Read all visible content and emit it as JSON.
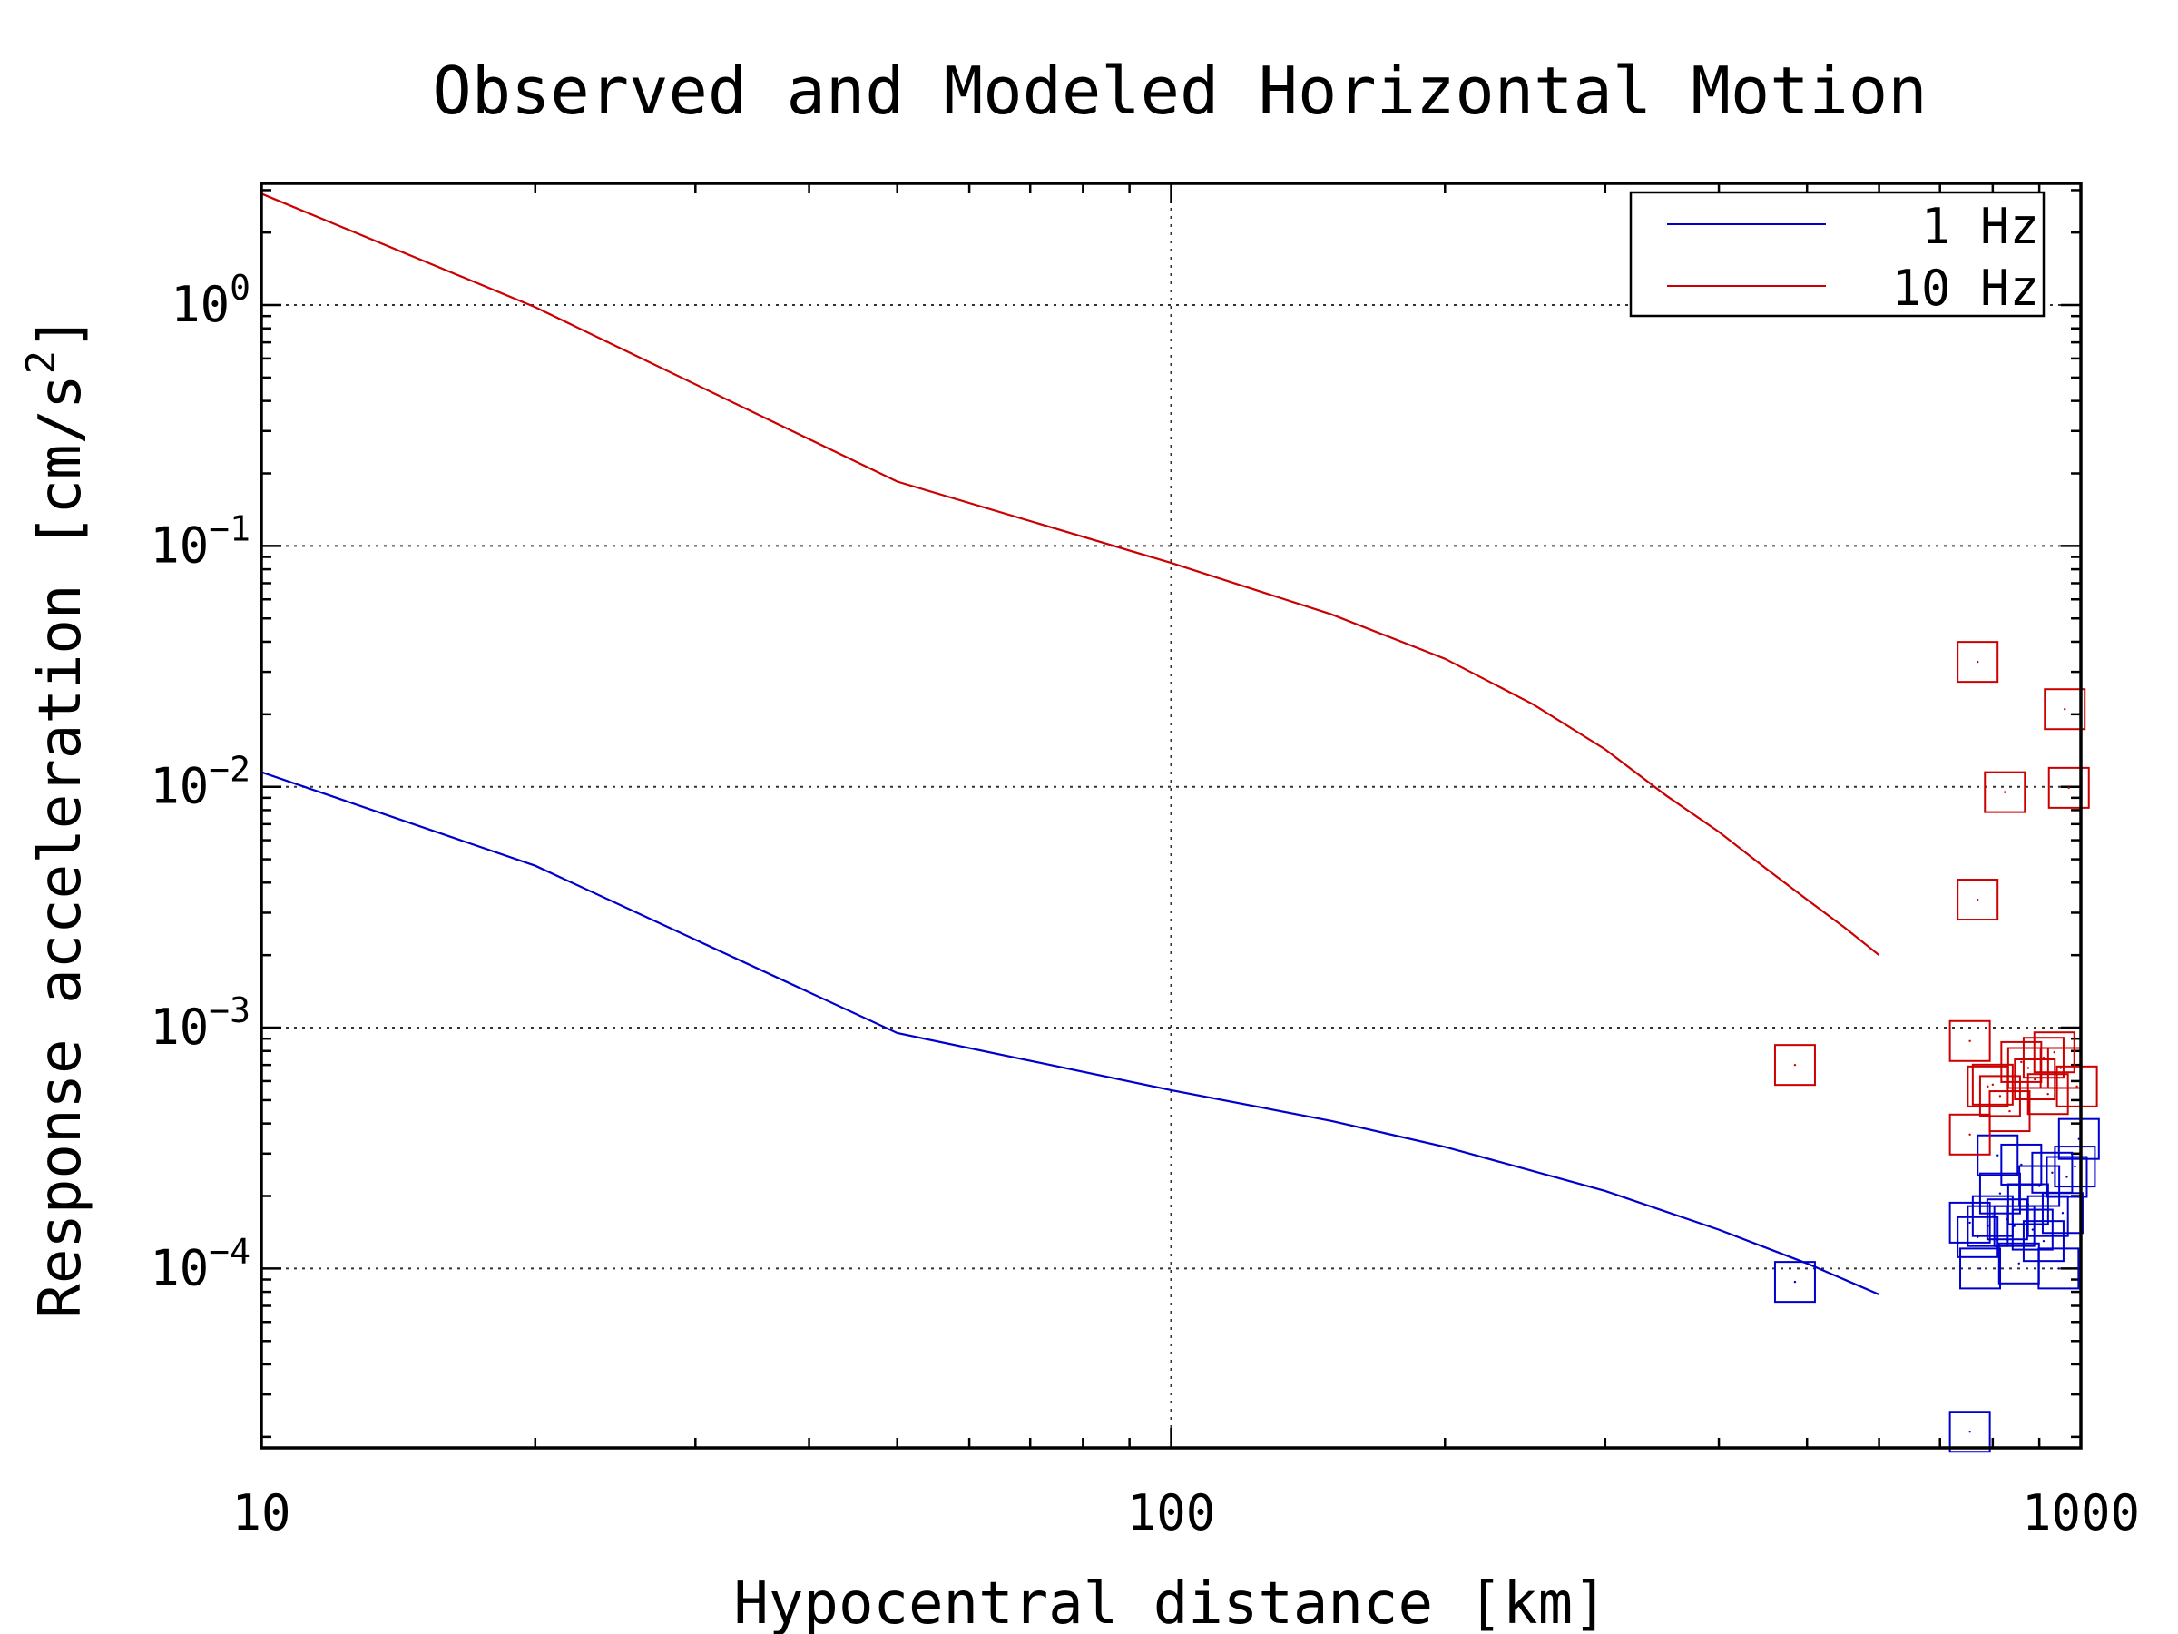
{
  "chart_data": {
    "type": "scatter",
    "title": "Observed and Modeled Horizontal Motion",
    "xlabel": "Hypocentral distance [km]",
    "ylabel_main": "Response acceleration [cm/s",
    "ylabel_sup": "2",
    "ylabel_close": "]",
    "xscale": "log",
    "yscale": "log",
    "xlim": [
      10,
      1000
    ],
    "ylim": [
      1.8e-05,
      3.2
    ],
    "grid": true,
    "legend_position": "top-right",
    "x_ticks": [
      {
        "value": 10,
        "label": "10"
      },
      {
        "value": 100,
        "label": "100"
      },
      {
        "value": 1000,
        "label": "1000"
      }
    ],
    "y_ticks": [
      {
        "value": 1,
        "base": "10",
        "exp": "0"
      },
      {
        "value": 0.1,
        "base": "10",
        "exp": "−1"
      },
      {
        "value": 0.01,
        "base": "10",
        "exp": "−2"
      },
      {
        "value": 0.001,
        "base": "10",
        "exp": "−3"
      },
      {
        "value": 0.0001,
        "base": "10",
        "exp": "−4"
      }
    ],
    "series": [
      {
        "name": "1 Hz",
        "color": "#0000cc",
        "model": [
          {
            "x": 10,
            "y": 0.0115
          },
          {
            "x": 20,
            "y": 0.0047
          },
          {
            "x": 50,
            "y": 0.00095
          },
          {
            "x": 100,
            "y": 0.00055
          },
          {
            "x": 150,
            "y": 0.00041
          },
          {
            "x": 200,
            "y": 0.00032
          },
          {
            "x": 300,
            "y": 0.00021
          },
          {
            "x": 400,
            "y": 0.000145
          },
          {
            "x": 500,
            "y": 0.000105
          },
          {
            "x": 600,
            "y": 7.8e-05
          }
        ],
        "observed": [
          {
            "x": 485,
            "y": 8.8e-05
          },
          {
            "x": 755,
            "y": 2.1e-05
          },
          {
            "x": 755,
            "y": 0.000155
          },
          {
            "x": 770,
            "y": 0.000135
          },
          {
            "x": 775,
            "y": 0.0001
          },
          {
            "x": 790,
            "y": 0.00015
          },
          {
            "x": 800,
            "y": 0.000165
          },
          {
            "x": 810,
            "y": 0.000295
          },
          {
            "x": 815,
            "y": 0.000205
          },
          {
            "x": 830,
            "y": 0.00016
          },
          {
            "x": 845,
            "y": 0.00015
          },
          {
            "x": 855,
            "y": 0.000105
          },
          {
            "x": 860,
            "y": 0.00027
          },
          {
            "x": 875,
            "y": 0.000185
          },
          {
            "x": 885,
            "y": 0.000145
          },
          {
            "x": 900,
            "y": 0.00022
          },
          {
            "x": 910,
            "y": 0.00013
          },
          {
            "x": 920,
            "y": 0.000165
          },
          {
            "x": 930,
            "y": 0.00025
          },
          {
            "x": 945,
            "y": 0.0001
          },
          {
            "x": 955,
            "y": 0.00017
          },
          {
            "x": 965,
            "y": 0.00024
          },
          {
            "x": 985,
            "y": 0.000265
          },
          {
            "x": 995,
            "y": 0.000345
          }
        ]
      },
      {
        "name": "10 Hz",
        "color": "#cc0000",
        "model": [
          {
            "x": 10,
            "y": 2.9
          },
          {
            "x": 20,
            "y": 0.98
          },
          {
            "x": 50,
            "y": 0.185
          },
          {
            "x": 100,
            "y": 0.085
          },
          {
            "x": 150,
            "y": 0.052
          },
          {
            "x": 200,
            "y": 0.034
          },
          {
            "x": 250,
            "y": 0.022
          },
          {
            "x": 300,
            "y": 0.0143
          },
          {
            "x": 350,
            "y": 0.0092
          },
          {
            "x": 400,
            "y": 0.0065
          },
          {
            "x": 450,
            "y": 0.0046
          },
          {
            "x": 500,
            "y": 0.0034
          },
          {
            "x": 550,
            "y": 0.0026
          },
          {
            "x": 600,
            "y": 0.002
          }
        ],
        "observed": [
          {
            "x": 485,
            "y": 0.0007
          },
          {
            "x": 755,
            "y": 0.00036
          },
          {
            "x": 755,
            "y": 0.00088
          },
          {
            "x": 770,
            "y": 0.033
          },
          {
            "x": 770,
            "y": 0.0034
          },
          {
            "x": 790,
            "y": 0.00057
          },
          {
            "x": 800,
            "y": 0.00058
          },
          {
            "x": 815,
            "y": 0.00052
          },
          {
            "x": 825,
            "y": 0.0095
          },
          {
            "x": 835,
            "y": 0.00045
          },
          {
            "x": 860,
            "y": 0.00072
          },
          {
            "x": 875,
            "y": 0.00068
          },
          {
            "x": 890,
            "y": 0.00061
          },
          {
            "x": 910,
            "y": 0.00075
          },
          {
            "x": 920,
            "y": 0.00053
          },
          {
            "x": 935,
            "y": 0.00079
          },
          {
            "x": 950,
            "y": 0.00068
          },
          {
            "x": 960,
            "y": 0.021
          },
          {
            "x": 970,
            "y": 0.0099
          },
          {
            "x": 990,
            "y": 0.00057
          }
        ]
      }
    ]
  }
}
